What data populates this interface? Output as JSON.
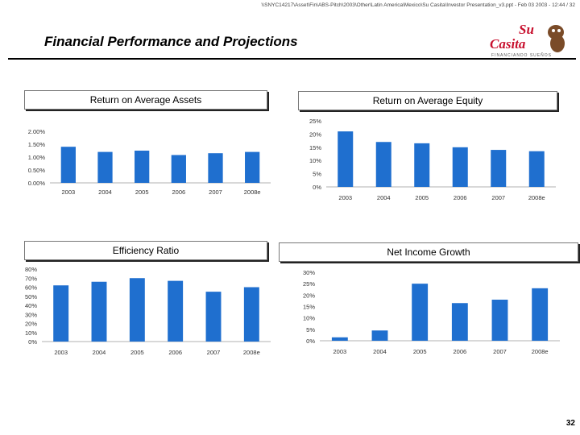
{
  "header": {
    "path": "\\\\SNYC14217\\Asset\\Fin\\ABS-Pitch\\2003\\Other\\Latin America\\Mexico\\Su Casita\\Investor Presentation_v3.ppt - Feb 03 2003 - 12:44 / 32",
    "title": "Financial Performance and Projections"
  },
  "logo": {
    "line1": "Su",
    "line2": "Casita",
    "tagline": "FINANCIANDO SUEÑOS",
    "colors": {
      "red": "#c8102e",
      "brown": "#7a4b28"
    }
  },
  "page_number": "32",
  "colors": {
    "bar": "#1f6fcf",
    "rule": "#000000"
  },
  "chart_data": [
    {
      "type": "bar",
      "title": "Return on Average Assets",
      "categories": [
        "2003",
        "2004",
        "2005",
        "2006",
        "2007",
        "2008e"
      ],
      "values": [
        1.4,
        1.2,
        1.25,
        1.08,
        1.15,
        1.2
      ],
      "ylim": [
        0,
        2
      ],
      "yticks": [
        0,
        0.5,
        1,
        1.5,
        2
      ],
      "ytick_labels": [
        "0.00%",
        "0.50%",
        "1.00%",
        "1.50%",
        "2.00%"
      ]
    },
    {
      "type": "bar",
      "title": "Return on Average Equity",
      "categories": [
        "2003",
        "2004",
        "2005",
        "2006",
        "2007",
        "2008e"
      ],
      "values": [
        21,
        17,
        16.5,
        15,
        14,
        13.5
      ],
      "ylim": [
        0,
        25
      ],
      "yticks": [
        0,
        5,
        10,
        15,
        20,
        25
      ],
      "ytick_labels": [
        "0%",
        "5%",
        "10%",
        "15%",
        "20%",
        "25%"
      ]
    },
    {
      "type": "bar",
      "title": "Efficiency Ratio",
      "categories": [
        "2003",
        "2004",
        "2005",
        "2006",
        "2007",
        "2008e"
      ],
      "values": [
        62,
        66,
        70,
        67,
        55,
        60
      ],
      "ylim": [
        0,
        80
      ],
      "yticks": [
        0,
        10,
        20,
        30,
        40,
        50,
        60,
        70,
        80
      ],
      "ytick_labels": [
        "0%",
        "10%",
        "20%",
        "30%",
        "40%",
        "50%",
        "60%",
        "70%",
        "80%"
      ]
    },
    {
      "type": "bar",
      "title": "Net Income Growth",
      "categories": [
        "2003",
        "2004",
        "2005",
        "2006",
        "2007",
        "2008e"
      ],
      "values": [
        1.5,
        4.5,
        25,
        16.5,
        18,
        23
      ],
      "ylim": [
        0,
        30
      ],
      "yticks": [
        0,
        5,
        10,
        15,
        20,
        25,
        30
      ],
      "ytick_labels": [
        "0%",
        "5%",
        "10%",
        "15%",
        "20%",
        "25%",
        "30%"
      ]
    }
  ]
}
